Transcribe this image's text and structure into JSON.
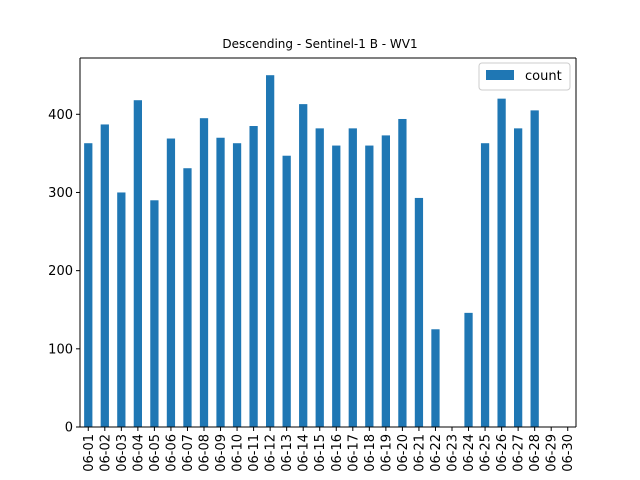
{
  "colors": {
    "bar": "#1f77b4",
    "axis": "#000000",
    "legend_border": "#cccccc"
  },
  "chart_data": {
    "type": "bar",
    "title": "Descending - Sentinel-1 B - WV1",
    "xlabel": "",
    "ylabel": "",
    "ylim": [
      0,
      472
    ],
    "yticks": [
      0,
      100,
      200,
      300,
      400
    ],
    "legend_position": "top-right",
    "grid": false,
    "categories": [
      "06-01",
      "06-02",
      "06-03",
      "06-04",
      "06-05",
      "06-06",
      "06-07",
      "06-08",
      "06-09",
      "06-10",
      "06-11",
      "06-12",
      "06-13",
      "06-14",
      "06-15",
      "06-16",
      "06-17",
      "06-18",
      "06-19",
      "06-20",
      "06-21",
      "06-22",
      "06-23",
      "06-24",
      "06-25",
      "06-26",
      "06-27",
      "06-28",
      "06-29",
      "06-30"
    ],
    "series": [
      {
        "name": "count",
        "values": [
          363,
          387,
          300,
          418,
          290,
          369,
          331,
          395,
          370,
          363,
          385,
          450,
          347,
          413,
          382,
          360,
          382,
          360,
          373,
          394,
          293,
          125,
          0,
          146,
          363,
          420,
          382,
          405,
          0,
          0
        ]
      }
    ]
  }
}
